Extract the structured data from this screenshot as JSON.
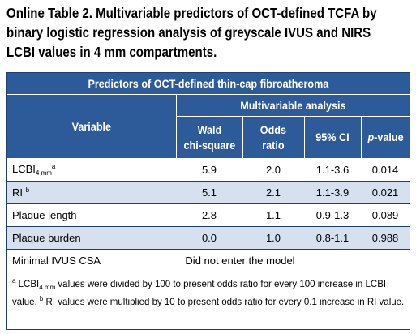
{
  "caption": {
    "line1": "Online Table 2. Multivariable predictors of OCT-defined TCFA by",
    "line2": "binary logistic regression analysis of greyscale IVUS and NIRS",
    "line3": "LCBI values in 4 mm compartments."
  },
  "table": {
    "title": "Predictors of OCT-defined thin-cap fibroatheroma",
    "variable_header": "Variable",
    "group_header": "Multivariable analysis",
    "columns": {
      "wald_line1": "Wald",
      "wald_line2": "chi-square",
      "odds_line1": "Odds",
      "odds_line2": "ratio",
      "ci": "95% CI",
      "p_italic": "p",
      "p_rest": "-value"
    },
    "rows": [
      {
        "variable": "LCBI",
        "sub": "4 mm",
        "sup": "a",
        "wald": "5.9",
        "odds": "2.0",
        "ci": "1.1-3.6",
        "p": "0.014"
      },
      {
        "variable": "RI",
        "sup": "b",
        "wald": "5.1",
        "odds": "2.1",
        "ci": "1.1-3.9",
        "p": "0.021"
      },
      {
        "variable": "Plaque length",
        "wald": "2.8",
        "odds": "1.1",
        "ci": "0.9-1.3",
        "p": "0.089"
      },
      {
        "variable": "Plaque burden",
        "wald": "0.0",
        "odds": "1.0",
        "ci": "0.8-1.1",
        "p": "0.988"
      },
      {
        "variable": "Minimal IVUS CSA",
        "merged": "Did not enter the model"
      }
    ],
    "footnote": {
      "a_mark": "a",
      "a_var": "LCBI",
      "a_sub": "4 mm",
      "a_text": " values were divided by 100 to present odds ratio for every 100 increase in LCBI value.",
      "b_mark": "b",
      "b_text": " RI values were multiplied by 10 to present odds ratio for every 0.1 increase in RI value."
    }
  },
  "colors": {
    "header_bg": "#2d5a99",
    "row_shade": "#d6e0ee",
    "border": "#1e3f74"
  }
}
